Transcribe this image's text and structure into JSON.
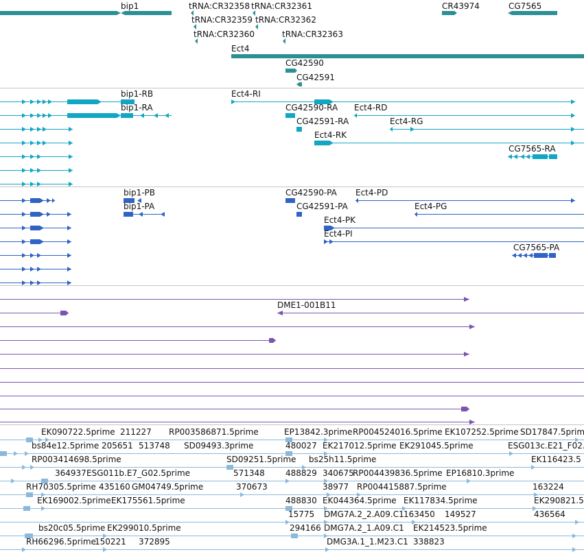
{
  "colors": {
    "gene": "#2b9094",
    "transcript": "#12a6c4",
    "protein": "#2f63c4",
    "clone": "#7a55b0",
    "est": "#8bb9dc",
    "divider": "#c4c4c4"
  },
  "tracks": {
    "genes": {
      "labels": [
        "bip1",
        "tRNA:CR32358",
        "tRNA:CR32361",
        "CR43974",
        "CG7565",
        "tRNA:CR32359",
        "tRNA:CR32362",
        "tRNA:CR32360",
        "tRNA:CR32363",
        "Ect4",
        "CG42590",
        "CG42591"
      ]
    },
    "transcripts": {
      "labels": [
        "bip1-RB",
        "Ect4-RI",
        "bip1-RA",
        "CG42590-RA",
        "Ect4-RD",
        "CG42591-RA",
        "Ect4-RG",
        "Ect4-RK",
        "CG7565-RA"
      ]
    },
    "proteins": {
      "labels": [
        "bip1-PB",
        "CG42590-PA",
        "Ect4-PD",
        "bip1-PA",
        "CG42591-PA",
        "Ect4-PG",
        "Ect4-PK",
        "Ect4-PI",
        "CG7565-PA"
      ]
    },
    "clones": {
      "labels": [
        "DME1-001B11"
      ]
    },
    "ests": {
      "labels": [
        "EK090722.5prime",
        "211227",
        "RP003586871.5prime",
        "EP13842.3prime",
        "RP004524016.5prime",
        "EK107252.5prime",
        "SD17847.5prime",
        "bs84e12.5prime",
        "205651",
        "513748",
        "SD09493.3prime",
        "480027",
        "EK217012.5prime",
        "EK291045.5prime",
        "ESG013c.E21_F02.",
        "RP003414698.5prime",
        "SD09251.5prime",
        "bs25h11.5prime",
        "EK116423.5",
        "364937",
        "ESG011b.E7_G02.5prime",
        "571348",
        "488829",
        "340675",
        "RP004439836.5prime",
        "EP16810.3prime",
        "RH70305.5prime",
        "435160",
        "GM04749.5prime",
        "370673",
        "38977",
        "RP004415887.5prime",
        "163224",
        "EK169002.5prime",
        "EK175561.5prime",
        "488830",
        "EK044364.5prime",
        "EK117834.5prime",
        "EK290821.5",
        "15775",
        "DMG7A.2_2.A09.C1",
        "163450",
        "149527",
        "436564",
        "bs20c05.5prime",
        "EK299010.5prime",
        "294166",
        "DMG7A.2_1.A09.C1",
        "EK214523.5prime",
        "RH66296.5prime",
        "150221",
        "372895",
        "DMG3A.1_1.M23.C1",
        "338823"
      ]
    }
  }
}
